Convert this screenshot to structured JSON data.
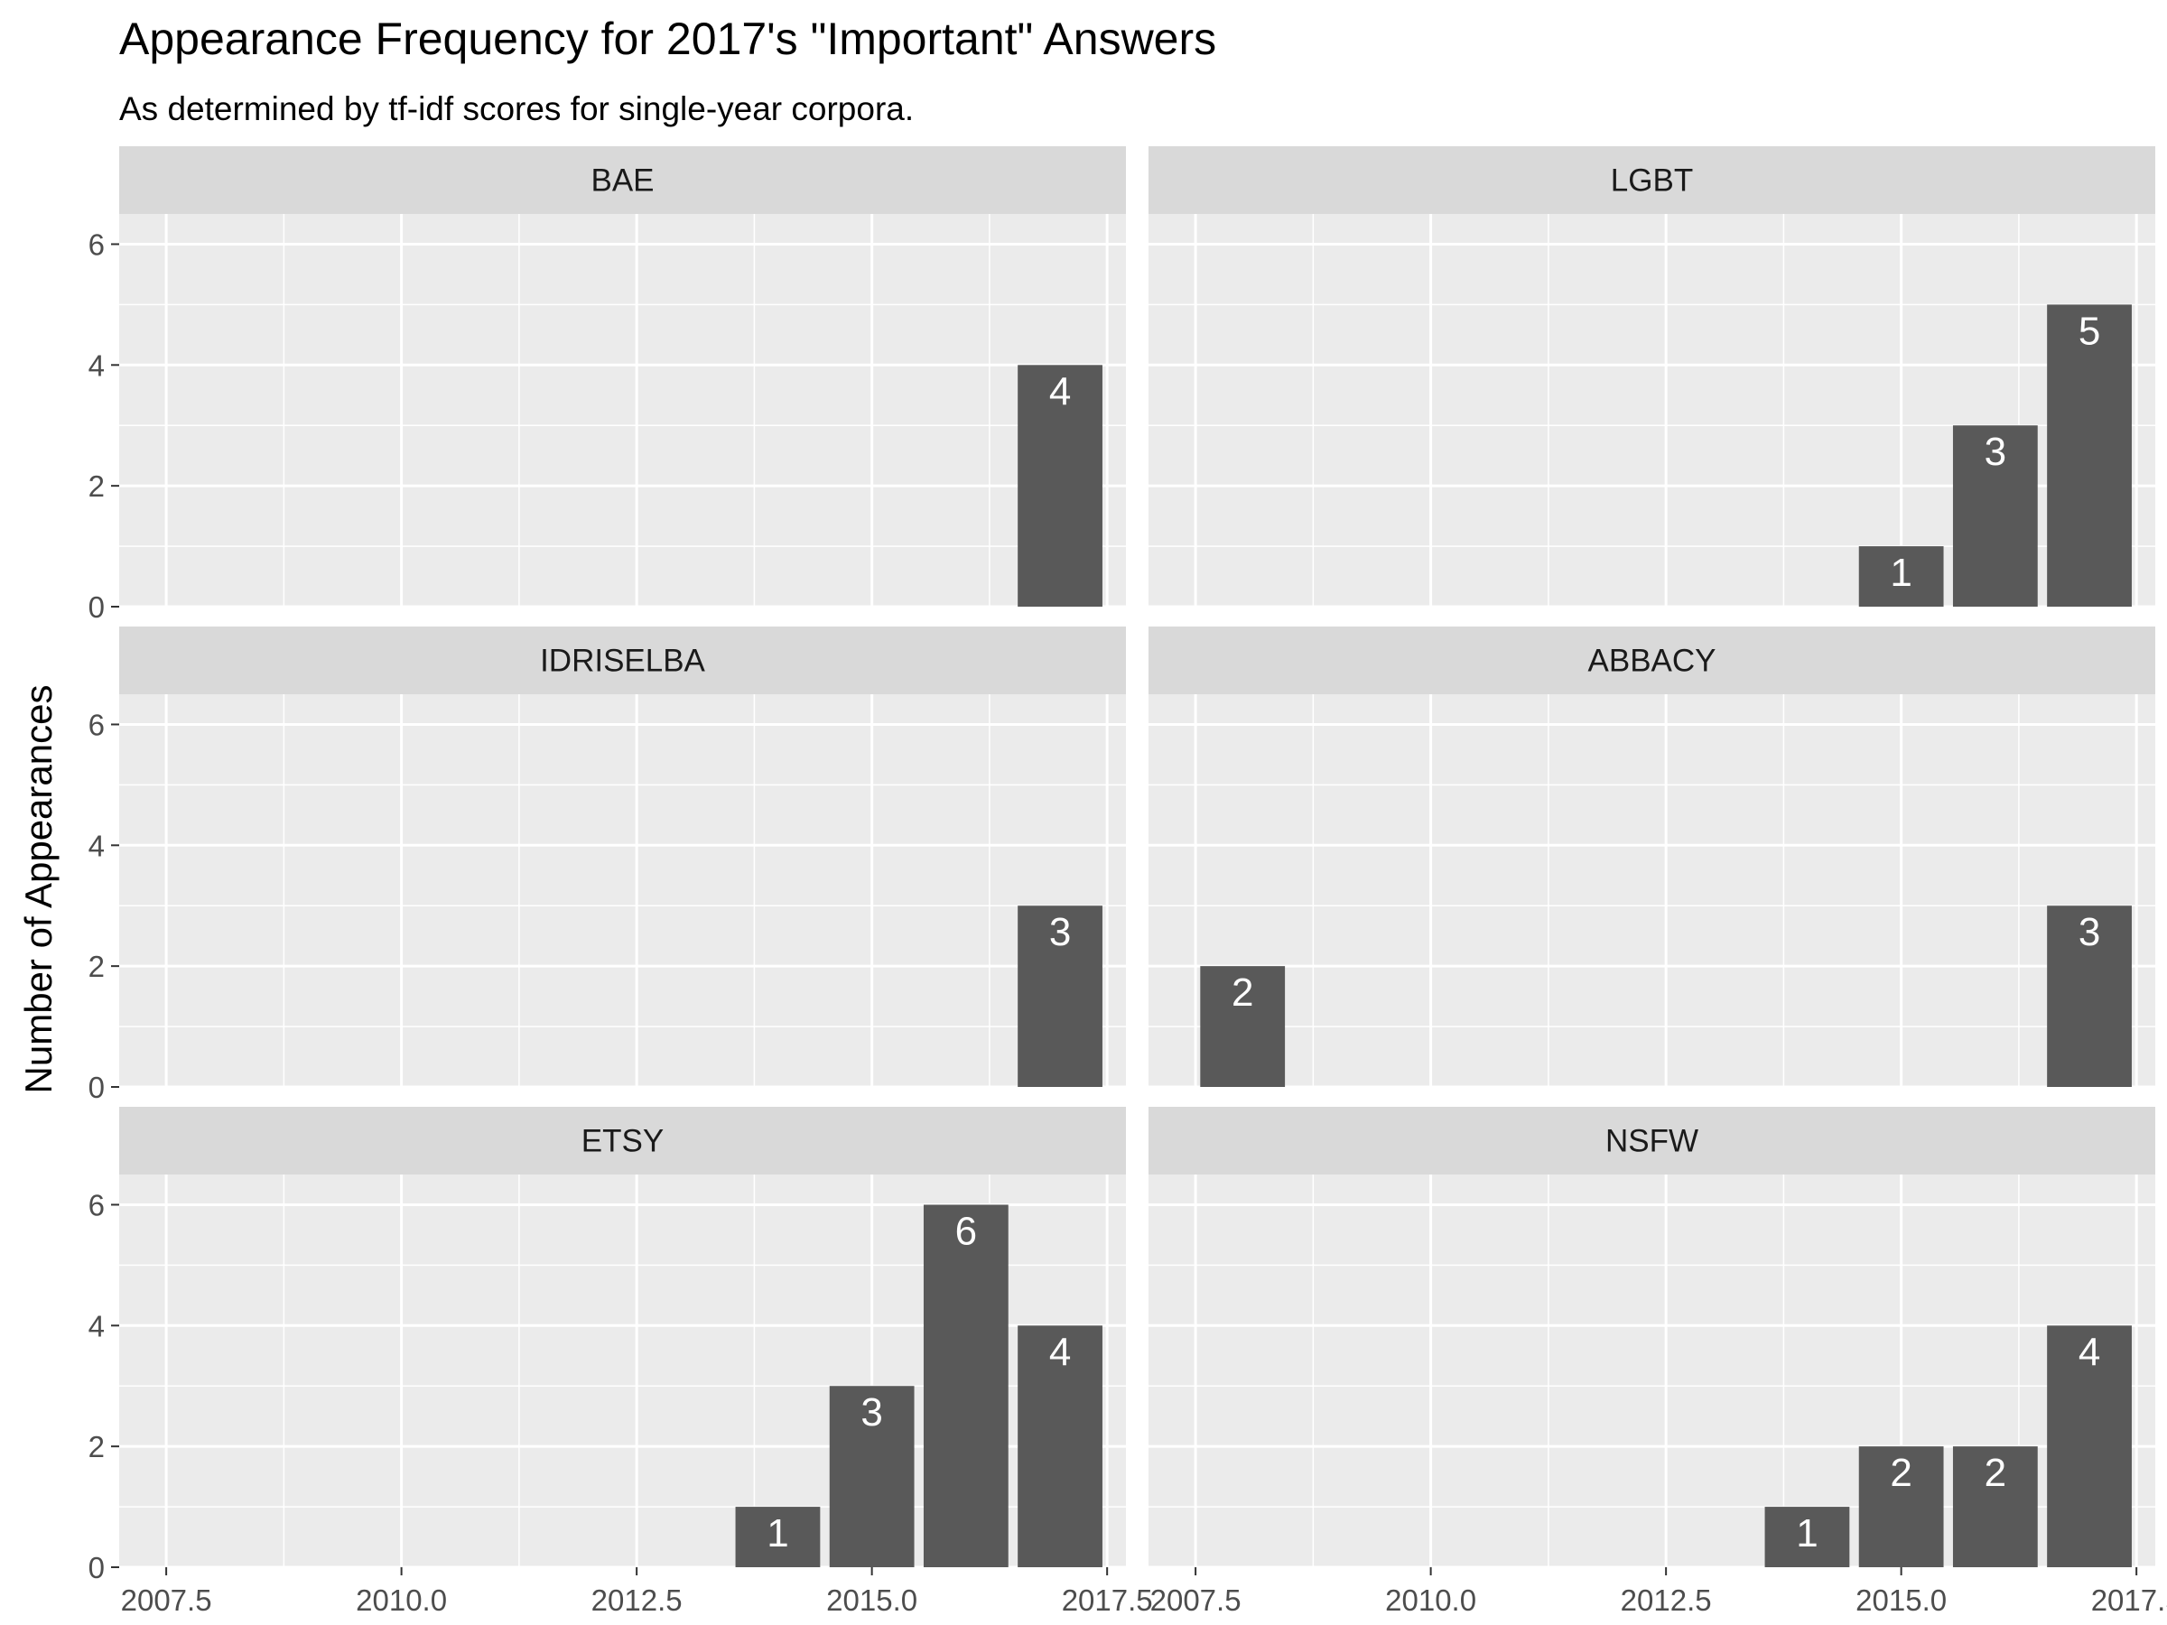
{
  "chart_data": {
    "type": "bar",
    "title": "Appearance Frequency for 2017's \"Important\" Answers",
    "subtitle": "As determined by tf-idf scores for single-year corpora.",
    "xlabel": "",
    "ylabel": "Number of Appearances",
    "xlim": [
      2007.0,
      2017.7
    ],
    "ylim": [
      0,
      6.5
    ],
    "x_ticks": [
      2007.5,
      2010.0,
      2012.5,
      2015.0,
      2017.5
    ],
    "x_tick_labels": [
      "2007.5",
      "2010.0",
      "2012.5",
      "2015.0",
      "2017.5"
    ],
    "y_ticks": [
      0,
      2,
      4,
      6
    ],
    "y_tick_labels": [
      "0",
      "2",
      "4",
      "6"
    ],
    "bar_width": 0.9,
    "grid": true,
    "legend": "none",
    "facet_layout": {
      "ncol": 2,
      "nrow": 3
    },
    "colors": {
      "bar": "#595959",
      "panel_background": "#ebebeb",
      "strip_background": "#d9d9d9",
      "grid": "#ffffff",
      "bar_label": "#ffffff"
    },
    "facets": [
      {
        "name": "BAE",
        "bars": [
          {
            "x": 2017,
            "value": 4
          }
        ]
      },
      {
        "name": "LGBT",
        "bars": [
          {
            "x": 2015,
            "value": 1
          },
          {
            "x": 2016,
            "value": 3
          },
          {
            "x": 2017,
            "value": 5
          }
        ]
      },
      {
        "name": "IDRISELBA",
        "bars": [
          {
            "x": 2017,
            "value": 3
          }
        ]
      },
      {
        "name": "ABBACY",
        "bars": [
          {
            "x": 2008,
            "value": 2
          },
          {
            "x": 2017,
            "value": 3
          }
        ]
      },
      {
        "name": "ETSY",
        "bars": [
          {
            "x": 2014,
            "value": 1
          },
          {
            "x": 2015,
            "value": 3
          },
          {
            "x": 2016,
            "value": 6
          },
          {
            "x": 2017,
            "value": 4
          }
        ]
      },
      {
        "name": "NSFW",
        "bars": [
          {
            "x": 2014,
            "value": 1
          },
          {
            "x": 2015,
            "value": 2
          },
          {
            "x": 2016,
            "value": 2
          },
          {
            "x": 2017,
            "value": 4
          }
        ]
      }
    ]
  }
}
